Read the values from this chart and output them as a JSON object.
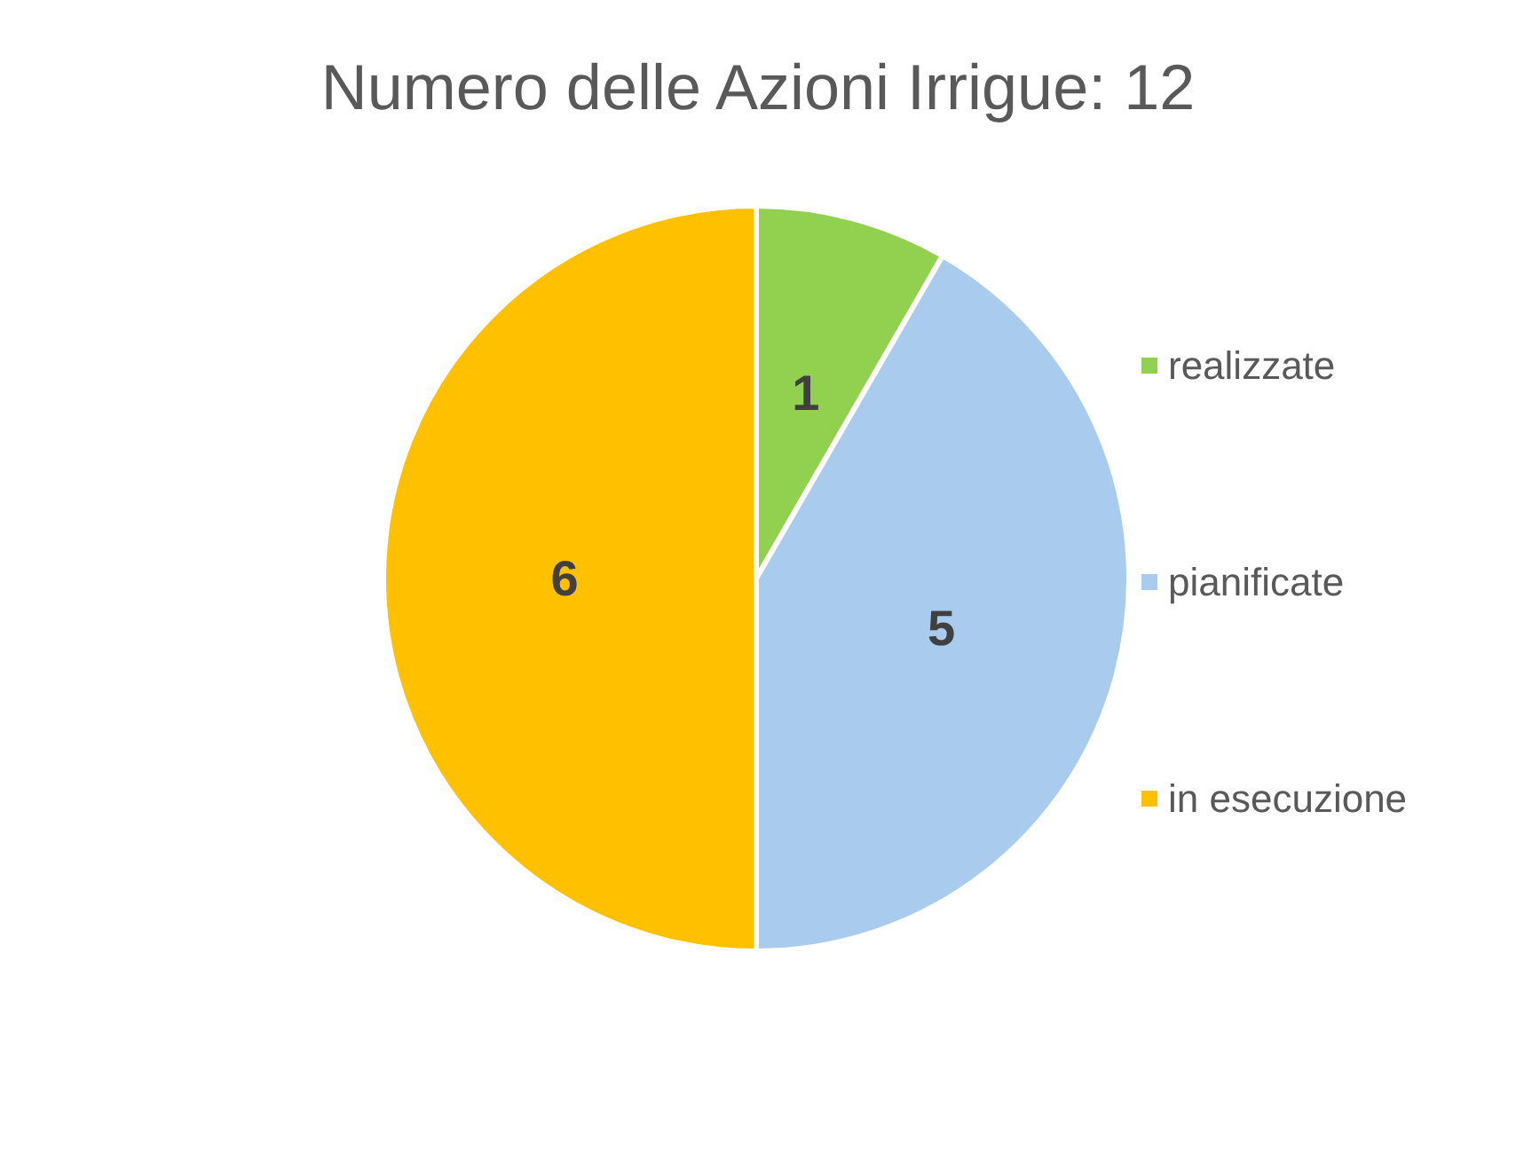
{
  "chart_data": {
    "type": "pie",
    "title": "Numero delle Azioni Irrigue: 12",
    "categories": [
      "realizzate",
      "pianificate",
      "in esecuzione"
    ],
    "values": [
      1,
      5,
      6
    ],
    "colors": [
      "#92d050",
      "#a9cbed",
      "#ffc000"
    ],
    "data_labels": true,
    "legend": "right"
  }
}
